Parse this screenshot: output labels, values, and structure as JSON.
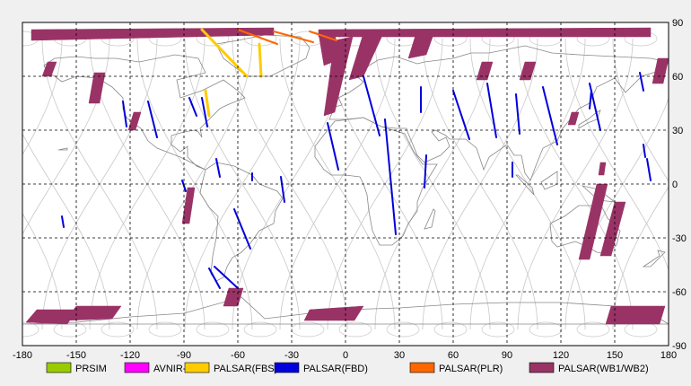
{
  "map": {
    "lon_range": [
      -180,
      180
    ],
    "lat_range": [
      -90,
      90
    ],
    "lon_ticks": [
      -180,
      -150,
      -120,
      -90,
      -60,
      -30,
      0,
      30,
      60,
      90,
      120,
      150,
      180
    ],
    "lat_ticks": [
      90,
      60,
      30,
      0,
      -30,
      -60,
      -90
    ],
    "lon_tick_labels": [
      "-180",
      "-150",
      "-120",
      "-90",
      "-60",
      "-30",
      "0",
      "30",
      "60",
      "90",
      "120",
      "150",
      "180"
    ],
    "lat_tick_labels": [
      "90",
      "60",
      "30",
      "0",
      "-30",
      "-60",
      "-90"
    ],
    "grid": true,
    "grid_style": "dashed",
    "orbit_track_color": "#c8c8c8",
    "coastline_color": "#888888"
  },
  "legend": [
    {
      "label": "PRSIM",
      "color": "#99cc00"
    },
    {
      "label": "AVNIR-2",
      "color": "#ff00ff"
    },
    {
      "label": "PALSAR(FBS)",
      "color": "#ffcc00"
    },
    {
      "label": "PALSAR(FBD)",
      "color": "#0000dd"
    },
    {
      "label": "PALSAR(PLR)",
      "color": "#ff6600"
    },
    {
      "label": "PALSAR(WB1/WB2)",
      "color": "#993366"
    }
  ],
  "observations": {
    "wb": [
      {
        "polygon": [
          [
            -175,
            86
          ],
          [
            -40,
            87
          ],
          [
            -40,
            83
          ],
          [
            -175,
            80
          ]
        ]
      },
      {
        "polygon": [
          [
            -15,
            86
          ],
          [
            170,
            87
          ],
          [
            170,
            82
          ],
          [
            -15,
            82
          ]
        ]
      },
      {
        "polygon": [
          [
            -15,
            84
          ],
          [
            -7,
            86
          ],
          [
            -2,
            70
          ],
          [
            -12,
            66
          ]
        ]
      },
      {
        "polygon": [
          [
            10,
            84
          ],
          [
            22,
            86
          ],
          [
            10,
            60
          ],
          [
            2,
            58
          ]
        ]
      },
      {
        "polygon": [
          [
            40,
            86
          ],
          [
            50,
            86
          ],
          [
            45,
            72
          ],
          [
            35,
            70
          ]
        ]
      },
      {
        "polygon": [
          [
            -6,
            80
          ],
          [
            4,
            82
          ],
          [
            -6,
            40
          ],
          [
            -12,
            38
          ]
        ]
      },
      {
        "polygon": [
          [
            -166,
            68
          ],
          [
            -161,
            68
          ],
          [
            -164,
            60
          ],
          [
            -169,
            60
          ]
        ]
      },
      {
        "polygon": [
          [
            -140,
            62
          ],
          [
            -134,
            62
          ],
          [
            -137,
            45
          ],
          [
            -143,
            45
          ]
        ]
      },
      {
        "polygon": [
          [
            -118,
            40
          ],
          [
            -114,
            40
          ],
          [
            -117,
            30
          ],
          [
            -121,
            30
          ]
        ]
      },
      {
        "polygon": [
          [
            -88,
            -2
          ],
          [
            -84,
            -2
          ],
          [
            -87,
            -22
          ],
          [
            -91,
            -22
          ]
        ]
      },
      {
        "polygon": [
          [
            76,
            68
          ],
          [
            82,
            68
          ],
          [
            79,
            58
          ],
          [
            73,
            58
          ]
        ]
      },
      {
        "polygon": [
          [
            100,
            68
          ],
          [
            106,
            68
          ],
          [
            103,
            58
          ],
          [
            97,
            58
          ]
        ]
      },
      {
        "polygon": [
          [
            174,
            70
          ],
          [
            180,
            70
          ],
          [
            177,
            56
          ],
          [
            171,
            56
          ]
        ]
      },
      {
        "polygon": [
          [
            126,
            40
          ],
          [
            130,
            40
          ],
          [
            128,
            33
          ],
          [
            124,
            33
          ]
        ]
      },
      {
        "polygon": [
          [
            142,
            12
          ],
          [
            145,
            12
          ],
          [
            144,
            5
          ],
          [
            141,
            5
          ]
        ]
      },
      {
        "polygon": [
          [
            140,
            0
          ],
          [
            146,
            0
          ],
          [
            136,
            -42
          ],
          [
            130,
            -42
          ]
        ]
      },
      {
        "polygon": [
          [
            150,
            -10
          ],
          [
            156,
            -10
          ],
          [
            148,
            -40
          ],
          [
            142,
            -40
          ]
        ]
      },
      {
        "polygon": [
          [
            -172,
            -70
          ],
          [
            -150,
            -70
          ],
          [
            -155,
            -78
          ],
          [
            -178,
            -77
          ]
        ]
      },
      {
        "polygon": [
          [
            -150,
            -68
          ],
          [
            -125,
            -68
          ],
          [
            -130,
            -75
          ],
          [
            -156,
            -76
          ]
        ]
      },
      {
        "polygon": [
          [
            -65,
            -58
          ],
          [
            -57,
            -58
          ],
          [
            -60,
            -68
          ],
          [
            -68,
            -68
          ]
        ]
      },
      {
        "polygon": [
          [
            -20,
            -70
          ],
          [
            10,
            -68
          ],
          [
            5,
            -76
          ],
          [
            -23,
            -76
          ]
        ]
      },
      {
        "polygon": [
          [
            148,
            -68
          ],
          [
            178,
            -68
          ],
          [
            175,
            -78
          ],
          [
            145,
            -78
          ]
        ]
      }
    ],
    "fbd": [
      [
        [
          -124,
          46
        ],
        [
          -122,
          32
        ]
      ],
      [
        [
          -110,
          46
        ],
        [
          -105,
          26
        ]
      ],
      [
        [
          -87,
          48
        ],
        [
          -83,
          38
        ]
      ],
      [
        [
          -80,
          48
        ],
        [
          -77,
          32
        ]
      ],
      [
        [
          -91,
          2
        ],
        [
          -89,
          -4
        ]
      ],
      [
        [
          -72,
          14
        ],
        [
          -70,
          4
        ]
      ],
      [
        [
          -36,
          4
        ],
        [
          -34,
          -10
        ]
      ],
      [
        [
          -62,
          -14
        ],
        [
          -53,
          -36
        ]
      ],
      [
        [
          -73,
          -46
        ],
        [
          -60,
          -58
        ]
      ],
      [
        [
          -158,
          -18
        ],
        [
          -157,
          -24
        ]
      ],
      [
        [
          -10,
          34
        ],
        [
          -4,
          8
        ]
      ],
      [
        [
          10,
          60
        ],
        [
          19,
          27
        ]
      ],
      [
        [
          22,
          36
        ],
        [
          28,
          -28
        ]
      ],
      [
        [
          45,
          16
        ],
        [
          44,
          -2
        ]
      ],
      [
        [
          60,
          52
        ],
        [
          69,
          25
        ]
      ],
      [
        [
          79,
          56
        ],
        [
          84,
          26
        ]
      ],
      [
        [
          95,
          50
        ],
        [
          97,
          28
        ]
      ],
      [
        [
          110,
          54
        ],
        [
          118,
          22
        ]
      ],
      [
        [
          136,
          56
        ],
        [
          142,
          30
        ]
      ],
      [
        [
          137,
          52
        ],
        [
          136,
          42
        ]
      ],
      [
        [
          164,
          62
        ],
        [
          166,
          52
        ]
      ],
      [
        [
          166,
          22
        ],
        [
          167,
          15
        ]
      ],
      [
        [
          168,
          14
        ],
        [
          170,
          2
        ]
      ],
      [
        [
          93,
          12
        ],
        [
          93,
          4
        ]
      ],
      [
        [
          42,
          54
        ],
        [
          42,
          40
        ]
      ],
      [
        [
          -76,
          -47
        ],
        [
          -70,
          -58
        ]
      ],
      [
        [
          -52,
          6
        ],
        [
          -52,
          2
        ]
      ]
    ],
    "fbs": [
      [
        [
          -80,
          86
        ],
        [
          -55,
          60
        ]
      ],
      [
        [
          -48,
          78
        ],
        [
          -47,
          60
        ]
      ],
      [
        [
          -78,
          52
        ],
        [
          -76,
          38
        ]
      ]
    ],
    "plr": [
      [
        [
          -60,
          86
        ],
        [
          -38,
          78
        ]
      ],
      [
        [
          -40,
          85
        ],
        [
          -18,
          79
        ]
      ],
      [
        [
          -20,
          85
        ],
        [
          -5,
          80
        ]
      ]
    ]
  }
}
